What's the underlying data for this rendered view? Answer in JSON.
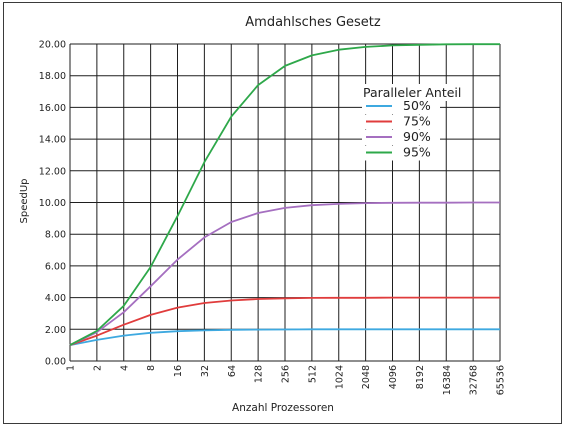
{
  "chart_data": {
    "type": "line",
    "title": "Amdahlsches Gesetz",
    "xlabel": "Anzahl Prozessoren",
    "ylabel": "SpeedUp",
    "x_scale": "log2",
    "x": [
      1,
      2,
      4,
      8,
      16,
      32,
      64,
      128,
      256,
      512,
      1024,
      2048,
      4096,
      8192,
      16384,
      32768,
      65536
    ],
    "x_tick_labels": [
      "1",
      "2",
      "4",
      "8",
      "16",
      "32",
      "64",
      "128",
      "256",
      "512",
      "1024",
      "2048",
      "4096",
      "8192",
      "16384",
      "32768",
      "65536"
    ],
    "ylim": [
      0,
      20
    ],
    "y_ticks": [
      0,
      2,
      4,
      6,
      8,
      10,
      12,
      14,
      16,
      18,
      20
    ],
    "y_tick_labels": [
      "0.00",
      "2.00",
      "4.00",
      "6.00",
      "8.00",
      "10.00",
      "12.00",
      "14.00",
      "16.00",
      "18.00",
      "20.00"
    ],
    "grid": true,
    "legend": {
      "title": "Paralleler Anteil",
      "placement": "right"
    },
    "series": [
      {
        "name": "50%",
        "color": "#3ea9e0",
        "values": [
          1.0,
          1.33,
          1.6,
          1.78,
          1.88,
          1.94,
          1.97,
          1.98,
          1.99,
          2.0,
          2.0,
          2.0,
          2.0,
          2.0,
          2.0,
          2.0,
          2.0
        ]
      },
      {
        "name": "75%",
        "color": "#e03c3c",
        "values": [
          1.0,
          1.6,
          2.29,
          2.91,
          3.37,
          3.66,
          3.82,
          3.91,
          3.95,
          3.98,
          3.99,
          3.99,
          4.0,
          4.0,
          4.0,
          4.0,
          4.0
        ]
      },
      {
        "name": "90%",
        "color": "#a56fc0",
        "values": [
          1.0,
          1.82,
          3.08,
          4.71,
          6.4,
          7.8,
          8.77,
          9.34,
          9.66,
          9.83,
          9.91,
          9.96,
          9.98,
          9.99,
          9.99,
          10.0,
          10.0
        ]
      },
      {
        "name": "95%",
        "color": "#2ea84a",
        "values": [
          1.0,
          1.9,
          3.48,
          5.93,
          9.14,
          12.55,
          15.42,
          17.41,
          18.62,
          19.28,
          19.64,
          19.82,
          19.91,
          19.95,
          19.98,
          19.99,
          19.99
        ]
      }
    ]
  }
}
